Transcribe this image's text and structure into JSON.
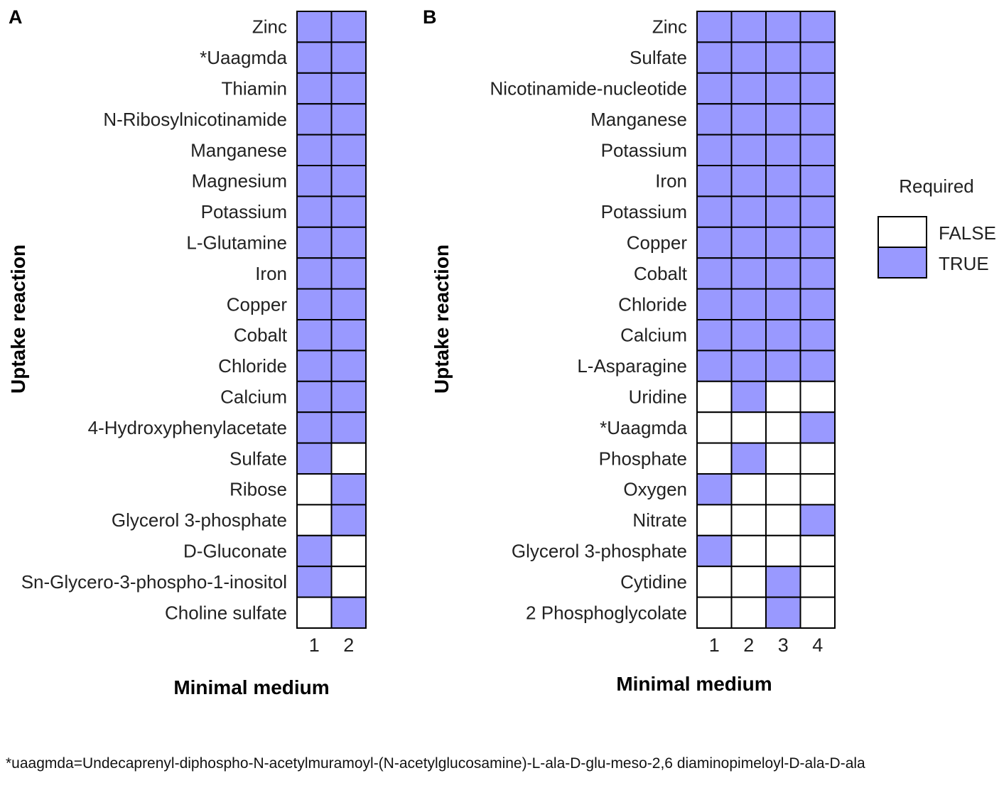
{
  "chart_data": [
    {
      "panel_label": "A",
      "type": "heatmap",
      "ylabel": "Uptake reaction",
      "xlabel": "Minimal medium",
      "columns": [
        "1",
        "2"
      ],
      "rows": [
        "Zinc",
        "*Uaagmda",
        "Thiamin",
        "N-Ribosylnicotinamide",
        "Manganese",
        "Magnesium",
        "Potassium",
        "L-Glutamine",
        "Iron",
        "Copper",
        "Cobalt",
        "Chloride",
        "Calcium",
        "4-Hydroxyphenylacetate",
        "Sulfate",
        "Ribose",
        "Glycerol 3-phosphate",
        "D-Gluconate",
        "Sn-Glycero-3-phospho-1-inositol",
        "Choline sulfate"
      ],
      "values": [
        [
          true,
          true
        ],
        [
          true,
          true
        ],
        [
          true,
          true
        ],
        [
          true,
          true
        ],
        [
          true,
          true
        ],
        [
          true,
          true
        ],
        [
          true,
          true
        ],
        [
          true,
          true
        ],
        [
          true,
          true
        ],
        [
          true,
          true
        ],
        [
          true,
          true
        ],
        [
          true,
          true
        ],
        [
          true,
          true
        ],
        [
          true,
          true
        ],
        [
          true,
          false
        ],
        [
          false,
          true
        ],
        [
          false,
          true
        ],
        [
          true,
          false
        ],
        [
          true,
          false
        ],
        [
          false,
          true
        ]
      ]
    },
    {
      "panel_label": "B",
      "type": "heatmap",
      "ylabel": "Uptake reaction",
      "xlabel": "Minimal medium",
      "columns": [
        "1",
        "2",
        "3",
        "4"
      ],
      "rows": [
        "Zinc",
        "Sulfate",
        "Nicotinamide-nucleotide",
        "Manganese",
        "Potassium",
        "Iron",
        "Potassium",
        "Copper",
        "Cobalt",
        "Chloride",
        "Calcium",
        "L-Asparagine",
        "Uridine",
        "*Uaagmda",
        "Phosphate",
        "Oxygen",
        "Nitrate",
        "Glycerol 3-phosphate",
        "Cytidine",
        "2 Phosphoglycolate"
      ],
      "values": [
        [
          true,
          true,
          true,
          true
        ],
        [
          true,
          true,
          true,
          true
        ],
        [
          true,
          true,
          true,
          true
        ],
        [
          true,
          true,
          true,
          true
        ],
        [
          true,
          true,
          true,
          true
        ],
        [
          true,
          true,
          true,
          true
        ],
        [
          true,
          true,
          true,
          true
        ],
        [
          true,
          true,
          true,
          true
        ],
        [
          true,
          true,
          true,
          true
        ],
        [
          true,
          true,
          true,
          true
        ],
        [
          true,
          true,
          true,
          true
        ],
        [
          true,
          true,
          true,
          true
        ],
        [
          false,
          true,
          false,
          false
        ],
        [
          false,
          false,
          false,
          true
        ],
        [
          false,
          true,
          false,
          false
        ],
        [
          true,
          false,
          false,
          false
        ],
        [
          false,
          false,
          false,
          true
        ],
        [
          true,
          false,
          false,
          false
        ],
        [
          false,
          false,
          true,
          false
        ],
        [
          false,
          false,
          true,
          false
        ]
      ]
    }
  ],
  "legend": {
    "title": "Required",
    "entries": [
      {
        "label": "FALSE",
        "color": "#ffffff"
      },
      {
        "label": "TRUE",
        "color": "#9999ff"
      }
    ]
  },
  "colors": {
    "true": "#9999ff",
    "false": "#ffffff",
    "border": "#000000"
  },
  "footnote": "*uaagmda=Undecaprenyl-diphospho-N-acetylmuramoyl-(N-acetylglucosamine)-L-ala-D-glu-meso-2,6 diaminopimeloyl-D-ala-D-ala"
}
